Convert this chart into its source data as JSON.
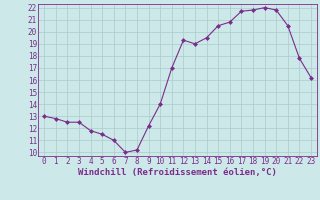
{
  "x": [
    0,
    1,
    2,
    3,
    4,
    5,
    6,
    7,
    8,
    9,
    10,
    11,
    12,
    13,
    14,
    15,
    16,
    17,
    18,
    19,
    20,
    21,
    22,
    23
  ],
  "y": [
    13,
    12.8,
    12.5,
    12.5,
    11.8,
    11.5,
    11.0,
    10.0,
    10.2,
    12.2,
    14.0,
    17.0,
    19.3,
    19.0,
    19.5,
    20.5,
    20.8,
    21.7,
    21.8,
    22.0,
    21.8,
    20.5,
    17.8,
    16.2
  ],
  "line_color": "#7b2d8b",
  "marker": "D",
  "marker_size": 2.0,
  "bg_color": "#cce8e8",
  "grid_color": "#aacccc",
  "xlabel": "Windchill (Refroidissement éolien,°C)",
  "ylim": [
    10,
    22
  ],
  "xlim": [
    -0.5,
    23.5
  ],
  "yticks": [
    10,
    11,
    12,
    13,
    14,
    15,
    16,
    17,
    18,
    19,
    20,
    21,
    22
  ],
  "xticks": [
    0,
    1,
    2,
    3,
    4,
    5,
    6,
    7,
    8,
    9,
    10,
    11,
    12,
    13,
    14,
    15,
    16,
    17,
    18,
    19,
    20,
    21,
    22,
    23
  ],
  "tick_color": "#7b2d8b",
  "axis_color": "#7b2d8b",
  "label_fontsize": 6.5,
  "tick_fontsize": 5.5
}
